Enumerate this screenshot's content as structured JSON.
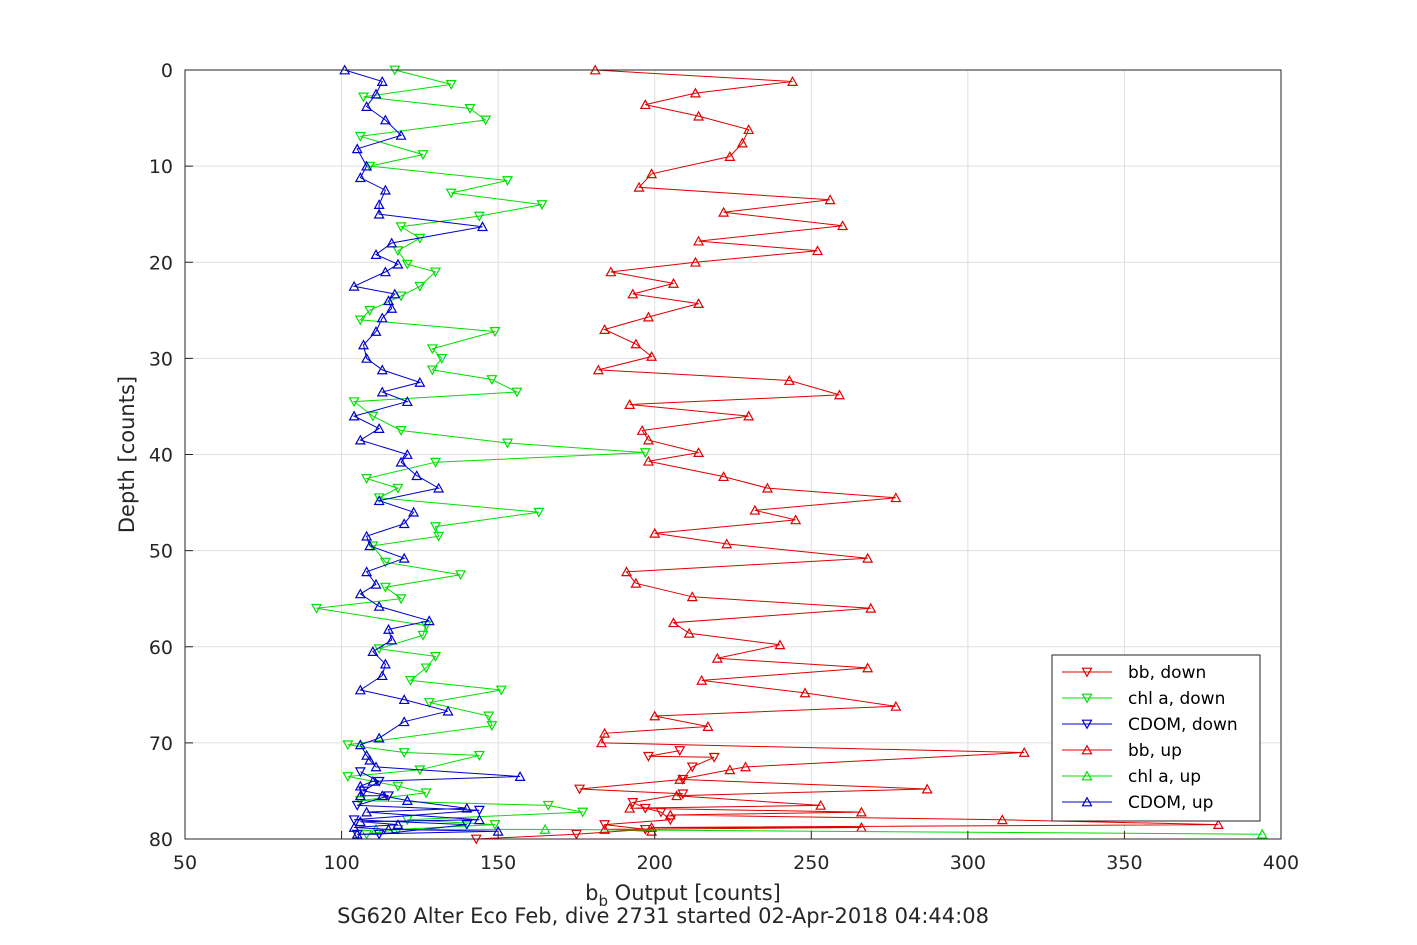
{
  "chart_data": {
    "type": "line",
    "title": "",
    "subtitle": "SG620 Alter Eco Feb, dive 2731 started 02-Apr-2018 04:44:08",
    "xlabel_main": "b",
    "xlabel_sub": "b",
    "xlabel_rest": " Output [counts]",
    "ylabel": "Depth [counts]",
    "xlim": [
      50,
      400
    ],
    "ylim": [
      0,
      80
    ],
    "y_reversed": true,
    "grid": true,
    "legend_position": "bottom-right",
    "xticks": [
      50,
      100,
      150,
      200,
      250,
      300,
      350,
      400
    ],
    "yticks": [
      0,
      10,
      20,
      30,
      40,
      50,
      60,
      70,
      80
    ],
    "colors": {
      "bb": "#e00000",
      "chl": "#00e000",
      "cdom": "#0000cc"
    },
    "series": [
      {
        "name": "bb, down",
        "color": "#e00000",
        "marker": "triangle-down",
        "points": [
          [
            143,
            80
          ],
          [
            175,
            79.5
          ],
          [
            197,
            79
          ],
          [
            184,
            78.5
          ],
          [
            205,
            78
          ],
          [
            202,
            77.2
          ],
          [
            197,
            76.8
          ],
          [
            193,
            76.2
          ],
          [
            209,
            75.3
          ],
          [
            176,
            74.8
          ],
          [
            209,
            73.8
          ],
          [
            212,
            72.5
          ],
          [
            219,
            71.5
          ],
          [
            198,
            71.4
          ],
          [
            208,
            70.8
          ]
        ]
      },
      {
        "name": "chl a, down",
        "color": "#00e000",
        "marker": "triangle-down",
        "points": [
          [
            117,
            0
          ],
          [
            135,
            1.5
          ],
          [
            107,
            2.8
          ],
          [
            141,
            4
          ],
          [
            146,
            5.2
          ],
          [
            106,
            6.9
          ],
          [
            126,
            8.8
          ],
          [
            109,
            10
          ],
          [
            153,
            11.5
          ],
          [
            135,
            12.8
          ],
          [
            164,
            14
          ],
          [
            144,
            15.2
          ],
          [
            119,
            16.3
          ],
          [
            125,
            17.5
          ],
          [
            118,
            18.8
          ],
          [
            121,
            20.2
          ],
          [
            130,
            21
          ],
          [
            125,
            22.5
          ],
          [
            119,
            23.5
          ],
          [
            109,
            25
          ],
          [
            106,
            26
          ],
          [
            149,
            27.2
          ],
          [
            129,
            29
          ],
          [
            132,
            30
          ],
          [
            129,
            31.2
          ],
          [
            148,
            32.2
          ],
          [
            156,
            33.5
          ],
          [
            104,
            34.5
          ],
          [
            110,
            36
          ],
          [
            119,
            37.5
          ],
          [
            153,
            38.8
          ],
          [
            197,
            39.8
          ],
          [
            130,
            40.8
          ],
          [
            108,
            42.5
          ],
          [
            118,
            43.5
          ],
          [
            112,
            44.5
          ],
          [
            163,
            46
          ],
          [
            130,
            47.5
          ],
          [
            131,
            48.5
          ],
          [
            110,
            49.5
          ],
          [
            114,
            51.2
          ],
          [
            138,
            52.5
          ],
          [
            114,
            53.8
          ],
          [
            119,
            55
          ],
          [
            92,
            56
          ],
          [
            127,
            57.8
          ],
          [
            126,
            58.8
          ],
          [
            112,
            60.2
          ],
          [
            130,
            61
          ],
          [
            127,
            62.2
          ],
          [
            122,
            63.5
          ],
          [
            151,
            64.5
          ],
          [
            128,
            65.8
          ],
          [
            147,
            67.2
          ],
          [
            148,
            68.2
          ],
          [
            102,
            70.2
          ],
          [
            120,
            71
          ],
          [
            144,
            71.3
          ],
          [
            125,
            72.8
          ],
          [
            102,
            73.5
          ],
          [
            118,
            74.5
          ],
          [
            127,
            75.2
          ],
          [
            106,
            76
          ],
          [
            166,
            76.5
          ],
          [
            177,
            77.2
          ],
          [
            121,
            78
          ],
          [
            149,
            78.5
          ],
          [
            118,
            79
          ],
          [
            108,
            79.5
          ]
        ]
      },
      {
        "name": "CDOM, down",
        "color": "#0000cc",
        "marker": "triangle-down",
        "points": [
          [
            106,
            73
          ],
          [
            112,
            74
          ],
          [
            107,
            75
          ],
          [
            115,
            75.5
          ],
          [
            105,
            76.5
          ],
          [
            144,
            77
          ],
          [
            104,
            78
          ],
          [
            140,
            78.5
          ],
          [
            112,
            79.5
          ],
          [
            105,
            79.5
          ]
        ]
      },
      {
        "name": "bb, up",
        "color": "#e00000",
        "marker": "triangle-up",
        "points": [
          [
            181,
            0
          ],
          [
            244,
            1.2
          ],
          [
            213,
            2.4
          ],
          [
            197,
            3.6
          ],
          [
            214,
            4.8
          ],
          [
            230,
            6.2
          ],
          [
            228,
            7.6
          ],
          [
            224,
            9
          ],
          [
            199,
            10.8
          ],
          [
            195,
            12.2
          ],
          [
            256,
            13.5
          ],
          [
            222,
            14.8
          ],
          [
            260,
            16.2
          ],
          [
            214,
            17.8
          ],
          [
            252,
            18.8
          ],
          [
            213,
            20
          ],
          [
            186,
            21
          ],
          [
            206,
            22.2
          ],
          [
            193,
            23.3
          ],
          [
            214,
            24.3
          ],
          [
            198,
            25.7
          ],
          [
            184,
            27
          ],
          [
            194,
            28.5
          ],
          [
            199,
            29.8
          ],
          [
            182,
            31.2
          ],
          [
            243,
            32.3
          ],
          [
            259,
            33.8
          ],
          [
            192,
            34.8
          ],
          [
            230,
            36
          ],
          [
            196,
            37.5
          ],
          [
            198,
            38.5
          ],
          [
            214,
            39.8
          ],
          [
            198,
            40.7
          ],
          [
            222,
            42.3
          ],
          [
            236,
            43.5
          ],
          [
            277,
            44.5
          ],
          [
            232,
            45.8
          ],
          [
            245,
            46.8
          ],
          [
            200,
            48.2
          ],
          [
            223,
            49.3
          ],
          [
            268,
            50.8
          ],
          [
            191,
            52.2
          ],
          [
            194,
            53.4
          ],
          [
            212,
            54.8
          ],
          [
            269,
            56
          ],
          [
            206,
            57.5
          ],
          [
            211,
            58.6
          ],
          [
            240,
            59.8
          ],
          [
            220,
            61.2
          ],
          [
            268,
            62.2
          ],
          [
            215,
            63.5
          ],
          [
            248,
            64.8
          ],
          [
            277,
            66.2
          ],
          [
            200,
            67.2
          ],
          [
            217,
            68.3
          ],
          [
            184,
            69
          ],
          [
            183,
            70
          ],
          [
            318,
            71
          ],
          [
            229,
            72.5
          ],
          [
            224,
            72.8
          ],
          [
            208,
            73.8
          ],
          [
            287,
            74.8
          ],
          [
            207,
            75.5
          ],
          [
            253,
            76.5
          ],
          [
            192,
            76.8
          ],
          [
            266,
            77.2
          ],
          [
            205,
            77.5
          ],
          [
            311,
            78
          ],
          [
            380,
            78.5
          ],
          [
            199,
            78.8
          ],
          [
            266,
            78.8
          ],
          [
            184,
            79
          ],
          [
            199,
            79.2
          ]
        ]
      },
      {
        "name": "chl a, up",
        "color": "#00e000",
        "marker": "triangle-up",
        "points": [
          [
            394,
            79.5
          ],
          [
            165,
            79
          ],
          [
            111,
            79
          ]
        ]
      },
      {
        "name": "CDOM, up",
        "color": "#0000cc",
        "marker": "triangle-up",
        "points": [
          [
            101,
            0
          ],
          [
            113,
            1.2
          ],
          [
            111,
            2.5
          ],
          [
            108,
            3.8
          ],
          [
            114,
            5.2
          ],
          [
            119,
            6.8
          ],
          [
            105,
            8.2
          ],
          [
            108,
            10
          ],
          [
            106,
            11.2
          ],
          [
            114,
            12.5
          ],
          [
            112,
            14
          ],
          [
            112,
            15
          ],
          [
            145,
            16.3
          ],
          [
            116,
            18
          ],
          [
            111,
            19.2
          ],
          [
            118,
            20.2
          ],
          [
            114,
            21
          ],
          [
            104,
            22.5
          ],
          [
            117,
            23.3
          ],
          [
            115,
            24
          ],
          [
            116,
            24.8
          ],
          [
            113,
            25.8
          ],
          [
            111,
            27.2
          ],
          [
            107,
            28.6
          ],
          [
            108,
            30
          ],
          [
            113,
            31.2
          ],
          [
            125,
            32.5
          ],
          [
            113,
            33.5
          ],
          [
            121,
            34.5
          ],
          [
            104,
            36
          ],
          [
            112,
            37.3
          ],
          [
            106,
            38.5
          ],
          [
            121,
            40
          ],
          [
            119,
            40.8
          ],
          [
            124,
            42.2
          ],
          [
            131,
            43.5
          ],
          [
            112,
            44.8
          ],
          [
            123,
            46
          ],
          [
            120,
            47.2
          ],
          [
            108,
            48.5
          ],
          [
            109,
            49.5
          ],
          [
            120,
            50.8
          ],
          [
            108,
            52.2
          ],
          [
            111,
            53.5
          ],
          [
            106,
            54.5
          ],
          [
            112,
            55.8
          ],
          [
            128,
            57.3
          ],
          [
            115,
            58.2
          ],
          [
            116,
            59.3
          ],
          [
            110,
            60.5
          ],
          [
            114,
            61.8
          ],
          [
            113,
            63
          ],
          [
            106,
            64.5
          ],
          [
            120,
            65.5
          ],
          [
            134,
            66.7
          ],
          [
            120,
            67.8
          ],
          [
            112,
            69.5
          ],
          [
            106,
            70.2
          ],
          [
            108,
            71.3
          ],
          [
            109,
            71.8
          ],
          [
            111,
            72.5
          ],
          [
            157,
            73.5
          ],
          [
            110,
            74
          ],
          [
            106,
            74.5
          ],
          [
            106,
            75.5
          ],
          [
            113,
            75.5
          ],
          [
            121,
            76
          ],
          [
            140,
            76.8
          ],
          [
            108,
            77.2
          ],
          [
            144,
            78
          ],
          [
            106,
            78.2
          ],
          [
            118,
            78.5
          ],
          [
            104,
            78.8
          ],
          [
            115,
            79
          ],
          [
            150,
            79.2
          ],
          [
            105,
            79.5
          ]
        ]
      }
    ]
  }
}
